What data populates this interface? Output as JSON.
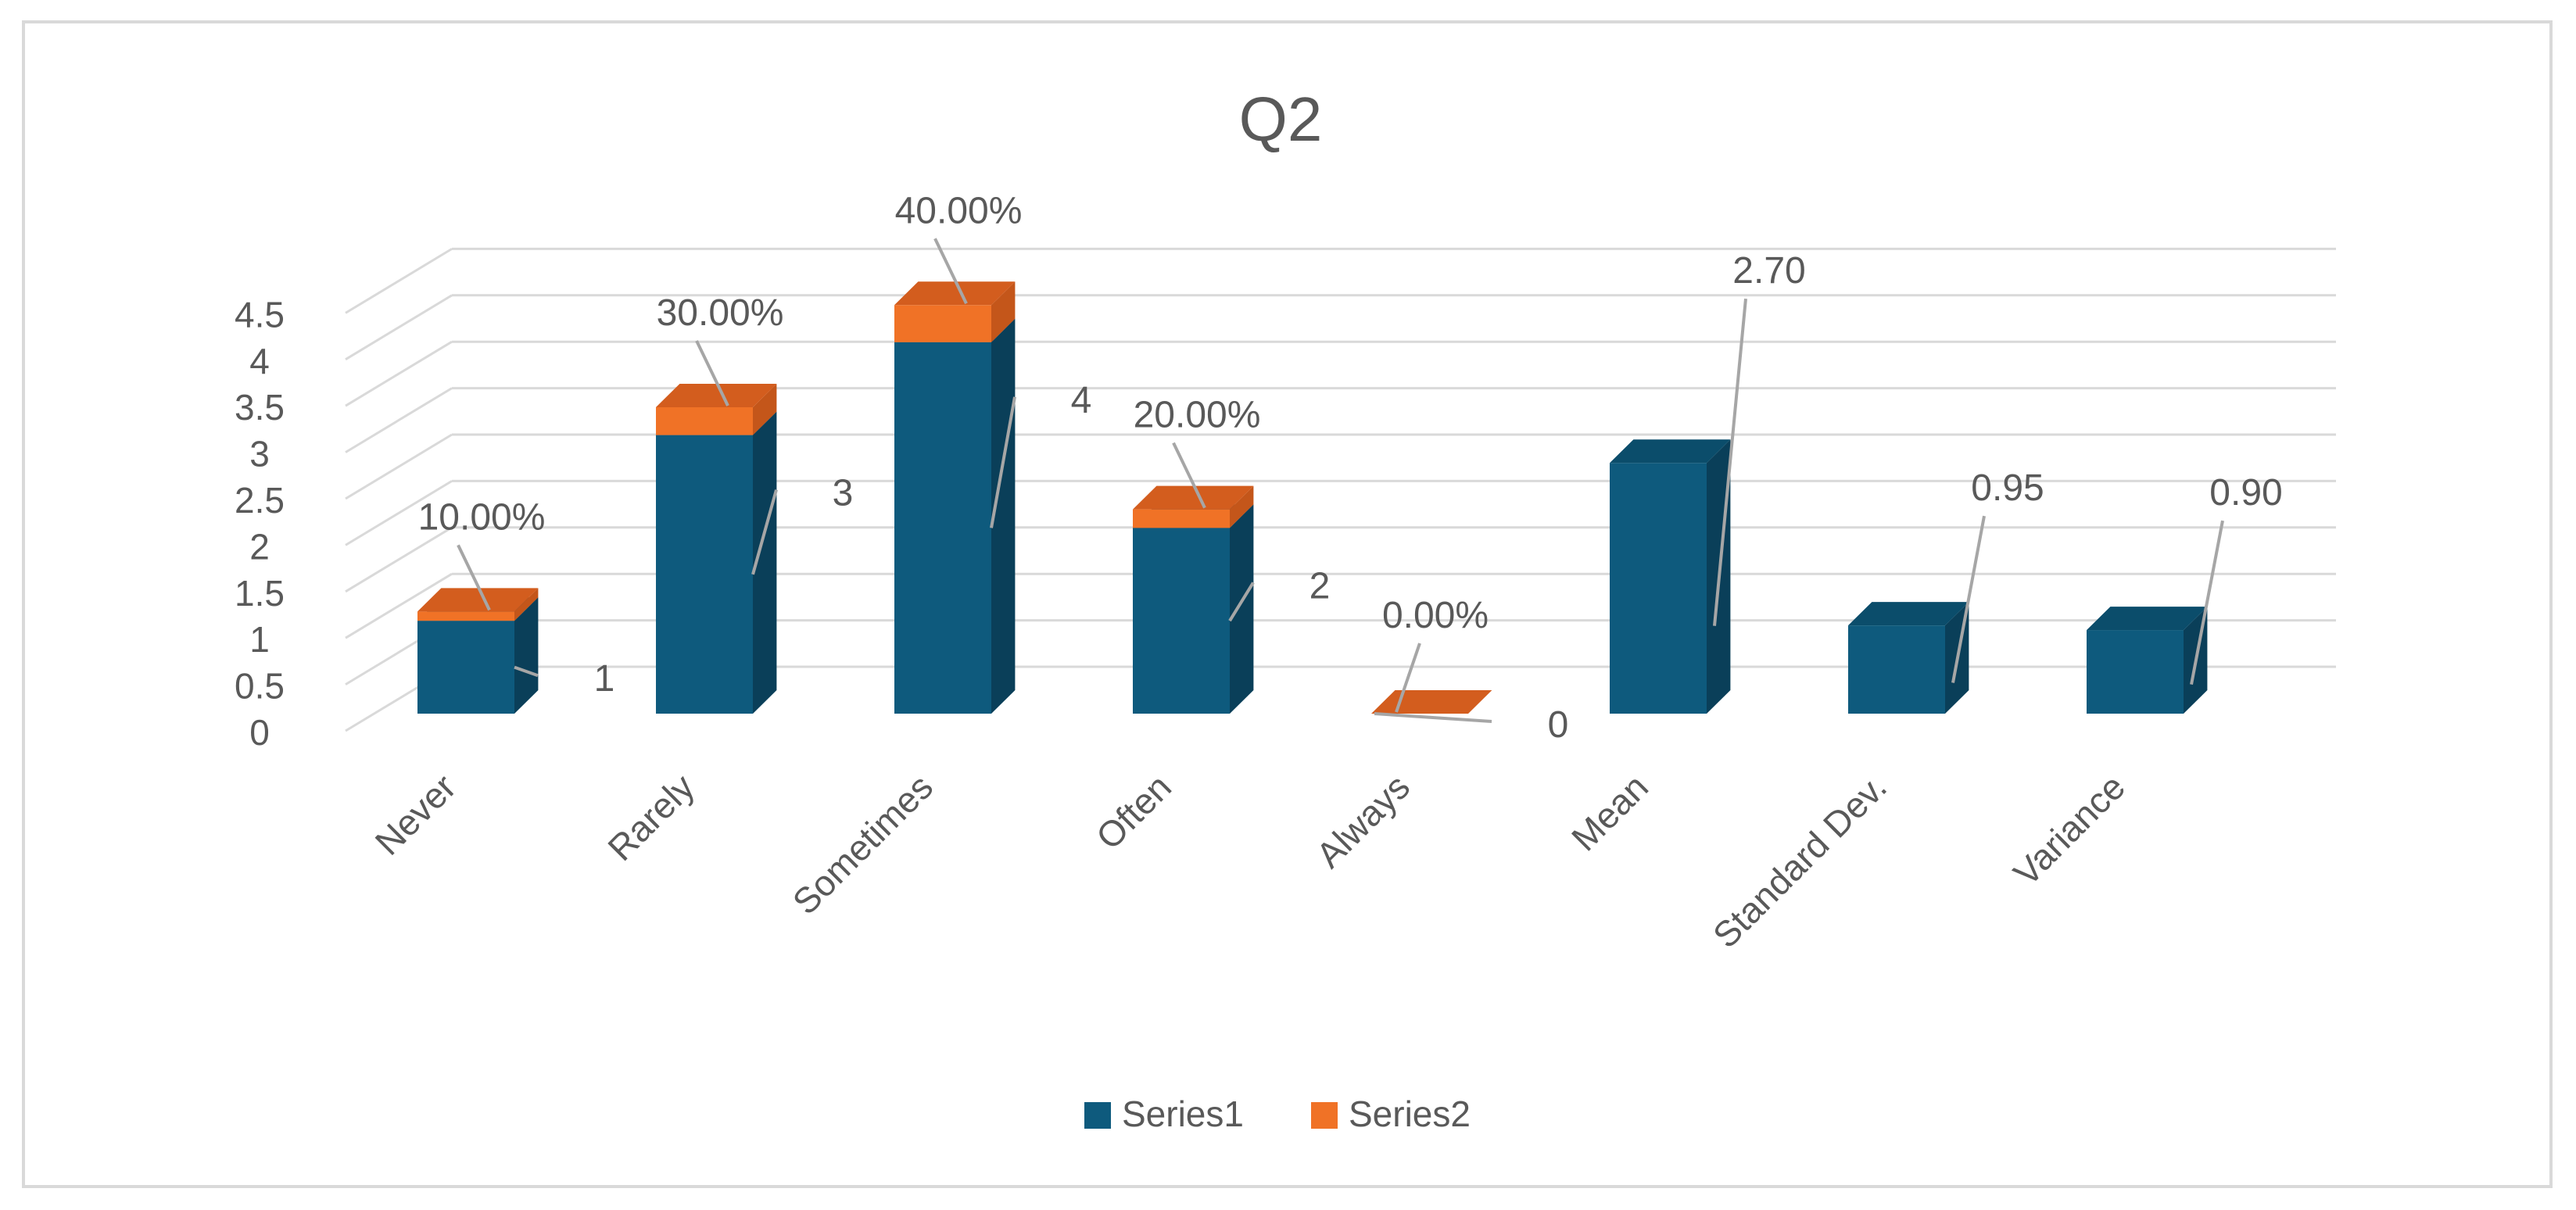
{
  "chart_data": {
    "type": "bar",
    "title": "Q2",
    "xlabel": "",
    "ylabel": "",
    "ylim": [
      0,
      4.5
    ],
    "yticks": [
      "0",
      "0.5",
      "1",
      "1.5",
      "2",
      "2.5",
      "3",
      "3.5",
      "4",
      "4.5"
    ],
    "grid": true,
    "stacked": true,
    "three_d": true,
    "legend_position": "bottom",
    "categories": [
      "Never",
      "Rarely",
      "Sometimes",
      "Often",
      "Always",
      "Mean",
      "Standard Dev.",
      "Variance"
    ],
    "series": [
      {
        "name": "Series1",
        "color": "#0e5a7d",
        "values": [
          1,
          3,
          4,
          2,
          0,
          2.7,
          0.95,
          0.9
        ]
      },
      {
        "name": "Series2",
        "color": "#f07226",
        "values": [
          0.1,
          0.3,
          0.4,
          0.2,
          0,
          null,
          null,
          null
        ]
      }
    ],
    "data_labels": {
      "Series1": [
        "1",
        "3",
        "4",
        "2",
        "0",
        "2.70",
        "0.95",
        "0.90"
      ],
      "Series2": [
        "10.00%",
        "30.00%",
        "40.00%",
        "20.00%",
        "0.00%",
        "",
        "",
        ""
      ]
    }
  }
}
